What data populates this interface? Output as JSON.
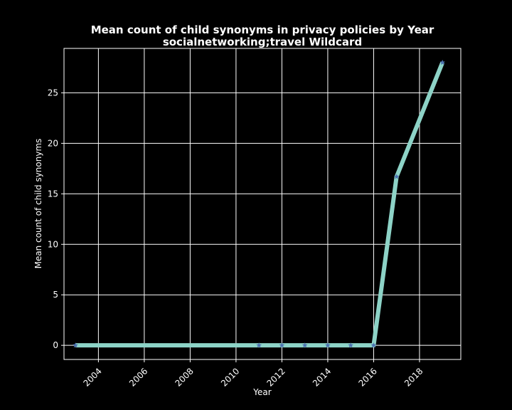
{
  "colors": {
    "background": "#000000",
    "axes_face": "#000000",
    "spine": "#ffffff",
    "grid": "#ffffff",
    "text": "#ffffff",
    "line": "#8dd3c7",
    "marker": "#4c72b0"
  },
  "chart_data": {
    "type": "line",
    "title": "Mean count of child synonyms in privacy policies by Year",
    "subtitle": "socialnetworking;travel Wildcard",
    "xlabel": "Year",
    "ylabel": "Mean count of child synonyms",
    "xlim": [
      2002.5,
      2019.8
    ],
    "ylim": [
      -1.4,
      29.4
    ],
    "x_ticks": [
      2004,
      2006,
      2008,
      2010,
      2012,
      2014,
      2016,
      2018
    ],
    "y_ticks": [
      0,
      5,
      10,
      15,
      20,
      25
    ],
    "x_tick_labels": [
      "2004",
      "2006",
      "2008",
      "2010",
      "2012",
      "2014",
      "2016",
      "2018"
    ],
    "y_tick_labels": [
      "0",
      "5",
      "10",
      "15",
      "20",
      "25"
    ],
    "grid": true,
    "legend": "none",
    "marker": "star",
    "series": [
      {
        "x": [
          2003,
          2011,
          2012,
          2013,
          2014,
          2015,
          2016,
          2017,
          2019
        ],
        "values": [
          0,
          0,
          0,
          0,
          0,
          0,
          0,
          16.7,
          28
        ]
      }
    ]
  }
}
